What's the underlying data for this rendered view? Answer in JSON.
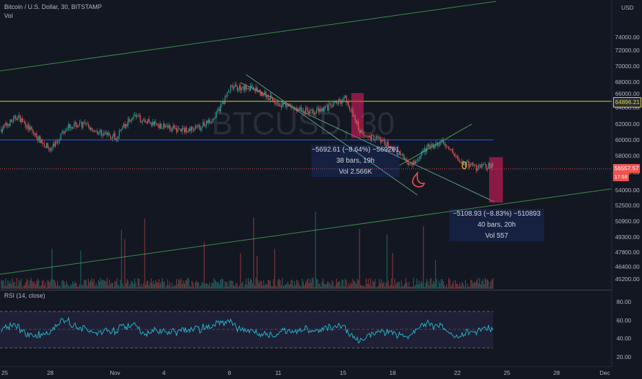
{
  "header": {
    "title": "Bitcoin / U.S. Dollar, 30, BITSTAMP",
    "volume_label": "Vol",
    "rsi_label": "RSI (14, close)"
  },
  "currency": "USD",
  "watermark": "BTCUSD, 30",
  "measurements": [
    {
      "line1": "−5692.61 (−8.64%) −569261",
      "line2": "38 bars, 19h",
      "line3": "Vol 2.566K"
    },
    {
      "line1": "−5108.93 (−8.83%) −510893",
      "line2": "40 bars, 20h",
      "line3": "Vol 557"
    }
  ],
  "price_tags": {
    "yellow_level": "64896.21",
    "last_price": "56557.57",
    "countdown": "17:58"
  },
  "colors": {
    "background": "#131722",
    "up": "#26a69a",
    "down": "#ef5350",
    "rsi_line": "#22b5c8",
    "rsi_band": "#7e57c2",
    "yellow_level": "#e3d43b",
    "blue_level": "#2962ff",
    "trend_line": "#4caf50",
    "measure_box": "#e91e63"
  },
  "chart_data": {
    "type": "candlestick",
    "symbol": "Bitcoin / U.S. Dollar",
    "interval": "30",
    "exchange": "BITSTAMP",
    "price_axis_ticks": [
      "74000.00",
      "72000.00",
      "70000.00",
      "68000.00",
      "66000.00",
      "64000.00",
      "62000.00",
      "60000.00",
      "58000.00",
      "56000.00",
      "54000.00",
      "52500.00",
      "50900.00",
      "49300.00",
      "47800.00",
      "46400.00",
      "45200.00"
    ],
    "time_axis_ticks": [
      "25",
      "28",
      "Nov",
      "4",
      "8",
      "11",
      "15",
      "18",
      "22",
      "25",
      "28",
      "Dec"
    ],
    "rsi_axis_ticks": [
      "80.00",
      "60.00",
      "40.00",
      "20.00"
    ],
    "rsi_levels": {
      "upper": 70,
      "middle": 50,
      "lower": 30
    },
    "horizontal_levels": [
      {
        "name": "resistance",
        "value": 64896.21,
        "color": "#e3d43b"
      },
      {
        "name": "support",
        "value": 60000,
        "color": "#2962ff"
      }
    ],
    "price_path": [
      {
        "t": "Oct 25",
        "p": 61500
      },
      {
        "t": "Oct 26",
        "p": 63200
      },
      {
        "t": "Oct 27",
        "p": 60800
      },
      {
        "t": "Oct 28",
        "p": 58600
      },
      {
        "t": "Oct 29",
        "p": 61900
      },
      {
        "t": "Oct 30",
        "p": 62100
      },
      {
        "t": "Oct 31",
        "p": 61000
      },
      {
        "t": "Nov 1",
        "p": 60400
      },
      {
        "t": "Nov 2",
        "p": 63300
      },
      {
        "t": "Nov 3",
        "p": 62400
      },
      {
        "t": "Nov 4",
        "p": 61800
      },
      {
        "t": "Nov 5",
        "p": 61300
      },
      {
        "t": "Nov 6",
        "p": 61600
      },
      {
        "t": "Nov 7",
        "p": 63000
      },
      {
        "t": "Nov 8",
        "p": 67100
      },
      {
        "t": "Nov 9",
        "p": 67200
      },
      {
        "t": "Nov 10",
        "p": 66300
      },
      {
        "t": "Nov 11",
        "p": 64900
      },
      {
        "t": "Nov 12",
        "p": 64200
      },
      {
        "t": "Nov 13",
        "p": 63900
      },
      {
        "t": "Nov 14",
        "p": 64500
      },
      {
        "t": "Nov 15",
        "p": 65700
      },
      {
        "t": "Nov 16",
        "p": 60600
      },
      {
        "t": "Nov 17",
        "p": 60200
      },
      {
        "t": "Nov 18",
        "p": 58600
      },
      {
        "t": "Nov 19",
        "p": 56600
      },
      {
        "t": "Nov 20",
        "p": 59000
      },
      {
        "t": "Nov 21",
        "p": 59600
      },
      {
        "t": "Nov 22",
        "p": 57000
      },
      {
        "t": "Nov 23",
        "p": 56200
      },
      {
        "t": "Nov 24",
        "p": 56557.57
      }
    ]
  }
}
